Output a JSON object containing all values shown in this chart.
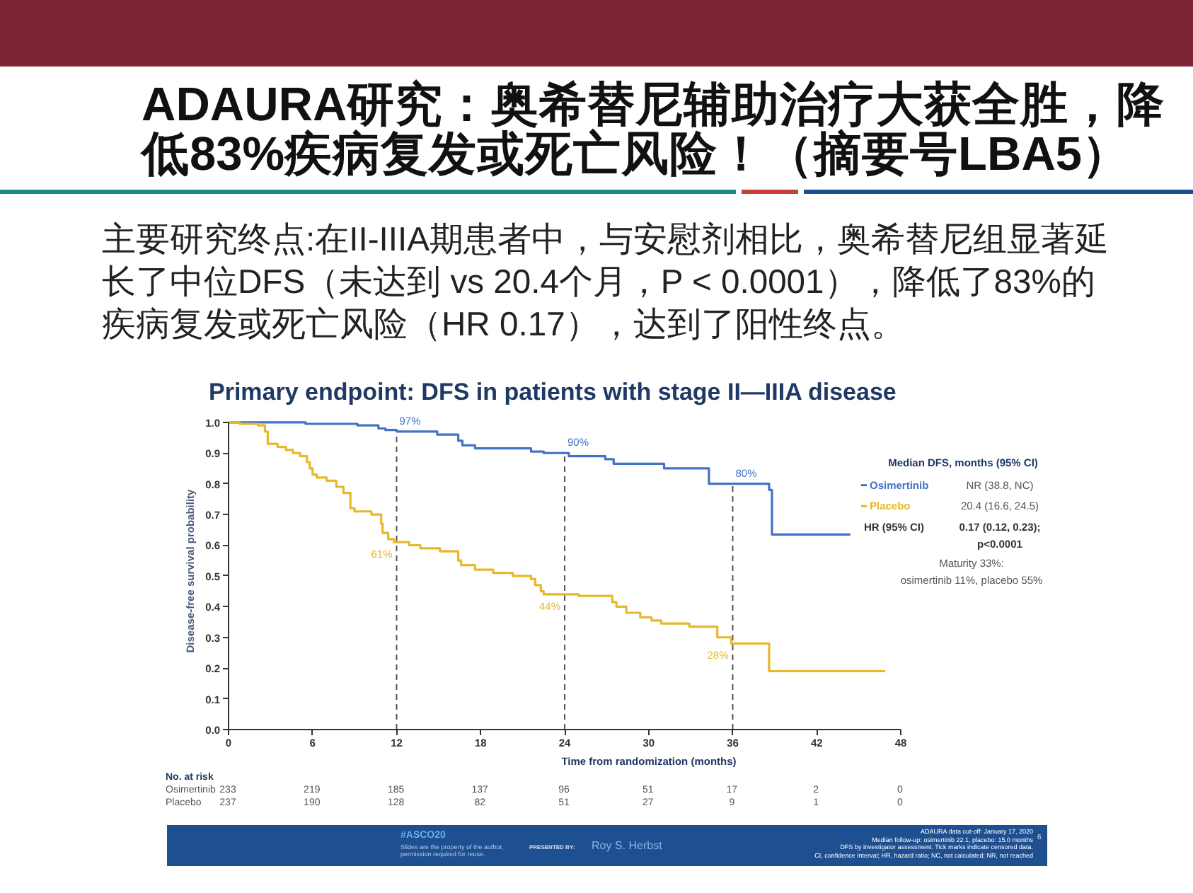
{
  "chart_data": {
    "type": "step",
    "title": "ADAURA研究：奥希替尼辅助治疗大获全胜，降低83%疾病复发或死亡风险！（摘要号LBA5）",
    "subtitle": "主要研究终点:在II-IIIA期患者中，与安慰剂相比，奥希替尼组显著延长了中位DFS（未达到 vs 20.4个月，P < 0.0001），降低了83%的疾病复发或死亡风险（HR 0.17），达到了阳性终点。",
    "xlabel": "Time from randomization (months)",
    "ylabel": "Disease-free survival probability",
    "legend_title": "Median DFS, months (95% CI)",
    "legend": "right",
    "line_style": "solid",
    "xlim": [
      0,
      48
    ],
    "xticks": [
      0,
      6,
      12,
      18,
      24,
      30,
      36,
      42,
      48
    ],
    "ylim": [
      0,
      1
    ],
    "yticks": [
      {
        "value": 0,
        "label": "0.0"
      },
      0.1,
      0.2,
      0.3,
      0.4,
      0.5,
      0.6,
      0.7,
      0.8,
      0.9,
      {
        "value": 1,
        "label": "1.0"
      }
    ],
    "series": [
      {
        "name": "Osimertinib",
        "color": "#4472c4",
        "x": [
          0,
          5.5,
          9.2,
          10.7,
          11.2,
          12,
          14.9,
          16.4,
          16.7,
          17.6,
          21.6,
          22.5,
          24.3,
          26.9,
          27.5,
          31.1,
          34.3,
          38.6,
          38.8,
          44.4
        ],
        "values": [
          1.0,
          0.995,
          0.99,
          0.98,
          0.975,
          0.97,
          0.96,
          0.94,
          0.925,
          0.915,
          0.905,
          0.9,
          0.89,
          0.88,
          0.865,
          0.85,
          0.8,
          0.78,
          0.635,
          0.635
        ]
      },
      {
        "name": "Placebo",
        "color": "#e6b82a",
        "x": [
          0,
          0.8,
          2.1,
          2.6,
          2.8,
          3.5,
          4.1,
          4.6,
          5.1,
          5.6,
          5.8,
          6.0,
          6.3,
          7.0,
          7.7,
          8.2,
          8.7,
          9.0,
          10.2,
          10.9,
          11.0,
          11.4,
          11.8,
          12.9,
          13.7,
          15.1,
          16.4,
          16.6,
          17.6,
          18.9,
          20.3,
          21.6,
          21.9,
          22.3,
          22.5,
          25.0,
          27.4,
          27.7,
          28.4,
          29.4,
          30.2,
          30.9,
          32.9,
          34.9,
          35.9,
          38.6,
          46.9
        ],
        "values": [
          1.0,
          0.995,
          0.99,
          0.97,
          0.93,
          0.92,
          0.91,
          0.9,
          0.89,
          0.87,
          0.85,
          0.83,
          0.82,
          0.81,
          0.79,
          0.77,
          0.72,
          0.71,
          0.7,
          0.67,
          0.64,
          0.62,
          0.61,
          0.6,
          0.59,
          0.58,
          0.55,
          0.535,
          0.52,
          0.51,
          0.5,
          0.49,
          0.47,
          0.45,
          0.44,
          0.435,
          0.415,
          0.4,
          0.38,
          0.365,
          0.355,
          0.345,
          0.335,
          0.3,
          0.28,
          0.19,
          0.19
        ]
      }
    ],
    "ref_lines": [
      {
        "axis": "x",
        "value": 12,
        "color": "#555555",
        "line_style": "dashed"
      },
      {
        "axis": "x",
        "value": 24,
        "color": "#555555",
        "line_style": "dashed"
      },
      {
        "axis": "x",
        "value": 36,
        "color": "#555555",
        "line_style": "dashed"
      }
    ],
    "annotations": [
      "Primary endpoint: DFS in patients with stage II—IIIA disease",
      {
        "text": "97%",
        "x": 12,
        "y": 0.97
      },
      {
        "text": "90%",
        "x": 24,
        "y": 0.9
      },
      {
        "text": "80%",
        "x": 36,
        "y": 0.8
      },
      {
        "text": "61%",
        "x": 12,
        "y": 0.61
      },
      {
        "text": "44%",
        "x": 24,
        "y": 0.44
      },
      {
        "text": "28%",
        "x": 36,
        "y": 0.28
      },
      "NR (38.8, NC)",
      "20.4 (16.6, 24.5)",
      "HR (95% CI)",
      "0.17 (0.12, 0.23);",
      "p<0.0001",
      "Maturity 33%:",
      "osimertinib 11%, placebo 55%",
      "No. at risk",
      "Osimertinib",
      "233",
      "219",
      "185",
      "137",
      "96",
      "51",
      "17",
      "2",
      "0",
      "Placebo",
      "237",
      "190",
      "128",
      "82",
      "51",
      "27",
      "9",
      "1",
      "0",
      "#ASCO20",
      "Slides are the property of the author,",
      "permission required for reuse.",
      "PRESENTED BY:",
      "Roy S. Herbst",
      "ADAURA data cut-off: January 17, 2020",
      "Median follow-up: osimertinib 22.1, placebo: 15.0 months",
      "DFS by investigator assessment. Tick marks indicate censored data.",
      "CI, confidence interval; HR, hazard ratio; NC, not calculated; NR, not reached",
      "6"
    ]
  }
}
